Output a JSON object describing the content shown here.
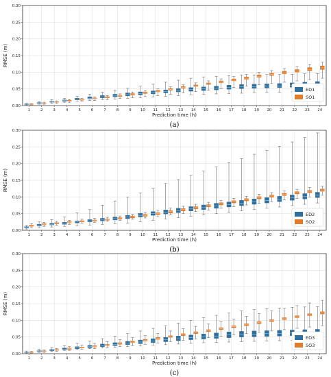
{
  "colors": {
    "series_a": "#2e6f9e",
    "series_b": "#e07b2a",
    "grid": "#d9d9d9",
    "whisker": "#555555"
  },
  "chart_data": [
    {
      "type": "box",
      "panel_label": "(a)",
      "xlabel": "Prediction time (h)",
      "ylabel": "RMSE (m)",
      "ylim": [
        0.0,
        0.3
      ],
      "yticks": [
        "0.00",
        "0.05",
        "0.10",
        "0.15",
        "0.20",
        "0.25",
        "0.30"
      ],
      "categories": [
        "1",
        "2",
        "3",
        "4",
        "5",
        "6",
        "7",
        "8",
        "9",
        "10",
        "11",
        "12",
        "13",
        "14",
        "15",
        "16",
        "17",
        "18",
        "19",
        "20",
        "21",
        "22",
        "23",
        "24"
      ],
      "grid": true,
      "legend_position": "bottom-right",
      "series": [
        {
          "name": "ED1",
          "color": "series_a",
          "whisker_low": [
            0.002,
            0.004,
            0.007,
            0.01,
            0.013,
            0.015,
            0.018,
            0.02,
            0.022,
            0.024,
            0.026,
            0.028,
            0.03,
            0.032,
            0.034,
            0.035,
            0.036,
            0.037,
            0.038,
            0.039,
            0.04,
            0.041,
            0.042,
            0.043
          ],
          "q1": [
            0.003,
            0.006,
            0.01,
            0.013,
            0.017,
            0.02,
            0.023,
            0.026,
            0.029,
            0.032,
            0.035,
            0.038,
            0.041,
            0.043,
            0.045,
            0.047,
            0.049,
            0.051,
            0.052,
            0.053,
            0.054,
            0.055,
            0.056,
            0.057
          ],
          "median": [
            0.004,
            0.007,
            0.011,
            0.015,
            0.019,
            0.022,
            0.026,
            0.029,
            0.033,
            0.036,
            0.039,
            0.042,
            0.045,
            0.048,
            0.05,
            0.052,
            0.054,
            0.056,
            0.057,
            0.058,
            0.059,
            0.06,
            0.061,
            0.063
          ],
          "q3": [
            0.005,
            0.009,
            0.013,
            0.017,
            0.022,
            0.026,
            0.03,
            0.034,
            0.038,
            0.041,
            0.044,
            0.047,
            0.051,
            0.054,
            0.056,
            0.058,
            0.061,
            0.063,
            0.064,
            0.065,
            0.066,
            0.068,
            0.07,
            0.072
          ],
          "whisker_high": [
            0.007,
            0.012,
            0.017,
            0.022,
            0.028,
            0.034,
            0.04,
            0.046,
            0.052,
            0.058,
            0.064,
            0.07,
            0.076,
            0.082,
            0.086,
            0.088,
            0.09,
            0.092,
            0.092,
            0.093,
            0.093,
            0.094,
            0.095,
            0.096
          ]
        },
        {
          "name": "SO1",
          "color": "series_b",
          "whisker_low": [
            0.002,
            0.004,
            0.007,
            0.01,
            0.013,
            0.015,
            0.018,
            0.021,
            0.024,
            0.027,
            0.03,
            0.034,
            0.038,
            0.042,
            0.046,
            0.05,
            0.054,
            0.058,
            0.062,
            0.066,
            0.07,
            0.074,
            0.078,
            0.082
          ],
          "q1": [
            0.003,
            0.006,
            0.01,
            0.013,
            0.016,
            0.02,
            0.023,
            0.027,
            0.031,
            0.036,
            0.041,
            0.046,
            0.052,
            0.057,
            0.063,
            0.068,
            0.074,
            0.079,
            0.085,
            0.09,
            0.095,
            0.1,
            0.104,
            0.108
          ],
          "median": [
            0.004,
            0.007,
            0.011,
            0.014,
            0.018,
            0.021,
            0.025,
            0.029,
            0.033,
            0.038,
            0.043,
            0.048,
            0.054,
            0.059,
            0.065,
            0.07,
            0.076,
            0.082,
            0.088,
            0.093,
            0.098,
            0.103,
            0.108,
            0.113
          ],
          "q3": [
            0.005,
            0.008,
            0.012,
            0.016,
            0.019,
            0.023,
            0.027,
            0.031,
            0.036,
            0.041,
            0.046,
            0.051,
            0.057,
            0.062,
            0.068,
            0.074,
            0.08,
            0.086,
            0.092,
            0.097,
            0.103,
            0.108,
            0.114,
            0.119
          ],
          "whisker_high": [
            0.006,
            0.01,
            0.014,
            0.018,
            0.022,
            0.026,
            0.03,
            0.035,
            0.04,
            0.045,
            0.05,
            0.056,
            0.062,
            0.068,
            0.074,
            0.08,
            0.087,
            0.093,
            0.099,
            0.105,
            0.111,
            0.117,
            0.123,
            0.13
          ]
        }
      ]
    },
    {
      "type": "box",
      "panel_label": "(b)",
      "xlabel": "Prediction time (h)",
      "ylabel": "RMSE (m)",
      "ylim": [
        0.0,
        0.3
      ],
      "yticks": [
        "0.00",
        "0.05",
        "0.10",
        "0.15",
        "0.20",
        "0.25",
        "0.30"
      ],
      "categories": [
        "1",
        "2",
        "3",
        "4",
        "5",
        "6",
        "7",
        "8",
        "9",
        "10",
        "11",
        "12",
        "13",
        "14",
        "15",
        "16",
        "17",
        "18",
        "19",
        "20",
        "21",
        "22",
        "23",
        "24"
      ],
      "grid": true,
      "legend_position": "bottom-right",
      "series": [
        {
          "name": "ED2",
          "color": "series_a",
          "whisker_low": [
            0.004,
            0.008,
            0.01,
            0.012,
            0.014,
            0.016,
            0.018,
            0.02,
            0.022,
            0.026,
            0.03,
            0.034,
            0.038,
            0.042,
            0.046,
            0.05,
            0.054,
            0.058,
            0.062,
            0.066,
            0.07,
            0.074,
            0.078,
            0.082
          ],
          "q1": [
            0.007,
            0.013,
            0.016,
            0.018,
            0.022,
            0.025,
            0.028,
            0.031,
            0.035,
            0.04,
            0.045,
            0.049,
            0.053,
            0.058,
            0.062,
            0.066,
            0.07,
            0.074,
            0.078,
            0.082,
            0.086,
            0.09,
            0.094,
            0.098
          ],
          "median": [
            0.009,
            0.015,
            0.018,
            0.021,
            0.025,
            0.028,
            0.031,
            0.035,
            0.04,
            0.045,
            0.05,
            0.054,
            0.059,
            0.064,
            0.068,
            0.073,
            0.077,
            0.081,
            0.085,
            0.089,
            0.093,
            0.097,
            0.101,
            0.105
          ],
          "q3": [
            0.011,
            0.018,
            0.021,
            0.024,
            0.028,
            0.032,
            0.036,
            0.04,
            0.045,
            0.051,
            0.056,
            0.061,
            0.066,
            0.071,
            0.076,
            0.081,
            0.085,
            0.09,
            0.094,
            0.098,
            0.102,
            0.106,
            0.11,
            0.114
          ],
          "whisker_high": [
            0.015,
            0.025,
            0.032,
            0.04,
            0.052,
            0.062,
            0.075,
            0.088,
            0.1,
            0.112,
            0.126,
            0.14,
            0.152,
            0.165,
            0.178,
            0.19,
            0.203,
            0.215,
            0.228,
            0.24,
            0.252,
            0.265,
            0.278,
            0.292
          ]
        },
        {
          "name": "SO2",
          "color": "series_b",
          "whisker_low": [
            0.008,
            0.012,
            0.015,
            0.018,
            0.021,
            0.024,
            0.027,
            0.03,
            0.033,
            0.037,
            0.041,
            0.046,
            0.051,
            0.056,
            0.061,
            0.066,
            0.071,
            0.076,
            0.081,
            0.086,
            0.091,
            0.096,
            0.1,
            0.105
          ],
          "q1": [
            0.012,
            0.016,
            0.019,
            0.022,
            0.025,
            0.027,
            0.03,
            0.033,
            0.037,
            0.042,
            0.047,
            0.052,
            0.058,
            0.064,
            0.07,
            0.076,
            0.082,
            0.088,
            0.094,
            0.099,
            0.104,
            0.109,
            0.113,
            0.117
          ],
          "median": [
            0.014,
            0.018,
            0.021,
            0.024,
            0.027,
            0.029,
            0.032,
            0.035,
            0.04,
            0.045,
            0.05,
            0.056,
            0.062,
            0.068,
            0.074,
            0.08,
            0.086,
            0.092,
            0.098,
            0.103,
            0.108,
            0.113,
            0.117,
            0.121
          ],
          "q3": [
            0.016,
            0.02,
            0.023,
            0.026,
            0.029,
            0.031,
            0.034,
            0.038,
            0.043,
            0.048,
            0.053,
            0.059,
            0.065,
            0.071,
            0.077,
            0.083,
            0.089,
            0.095,
            0.101,
            0.106,
            0.111,
            0.116,
            0.12,
            0.124
          ],
          "whisker_high": [
            0.02,
            0.024,
            0.027,
            0.03,
            0.033,
            0.036,
            0.039,
            0.043,
            0.048,
            0.054,
            0.06,
            0.066,
            0.072,
            0.078,
            0.084,
            0.09,
            0.096,
            0.102,
            0.108,
            0.113,
            0.118,
            0.123,
            0.128,
            0.132
          ]
        }
      ]
    },
    {
      "type": "box",
      "panel_label": "(c)",
      "xlabel": "Prediction time (h)",
      "ylabel": "RMSE (m)",
      "ylim": [
        0.0,
        0.3
      ],
      "yticks": [
        "0.00",
        "0.05",
        "0.10",
        "0.15",
        "0.20",
        "0.25",
        "0.30"
      ],
      "categories": [
        "1",
        "2",
        "3",
        "4",
        "5",
        "6",
        "7",
        "8",
        "9",
        "10",
        "11",
        "12",
        "13",
        "14",
        "15",
        "16",
        "17",
        "18",
        "19",
        "20",
        "21",
        "22",
        "23",
        "24"
      ],
      "grid": true,
      "legend_position": "bottom-right",
      "series": [
        {
          "name": "ED3",
          "color": "series_a",
          "whisker_low": [
            0.002,
            0.004,
            0.007,
            0.01,
            0.013,
            0.015,
            0.017,
            0.019,
            0.021,
            0.023,
            0.025,
            0.027,
            0.029,
            0.031,
            0.033,
            0.034,
            0.035,
            0.036,
            0.037,
            0.038,
            0.039,
            0.04,
            0.041,
            0.042
          ],
          "q1": [
            0.003,
            0.006,
            0.009,
            0.012,
            0.015,
            0.018,
            0.021,
            0.024,
            0.027,
            0.03,
            0.033,
            0.036,
            0.039,
            0.042,
            0.044,
            0.046,
            0.048,
            0.05,
            0.051,
            0.052,
            0.053,
            0.054,
            0.055,
            0.056
          ],
          "median": [
            0.004,
            0.007,
            0.011,
            0.014,
            0.018,
            0.021,
            0.025,
            0.028,
            0.032,
            0.035,
            0.038,
            0.042,
            0.045,
            0.048,
            0.051,
            0.053,
            0.056,
            0.058,
            0.059,
            0.06,
            0.061,
            0.062,
            0.063,
            0.064
          ],
          "q3": [
            0.005,
            0.009,
            0.013,
            0.017,
            0.021,
            0.025,
            0.029,
            0.033,
            0.037,
            0.041,
            0.045,
            0.049,
            0.053,
            0.056,
            0.059,
            0.062,
            0.065,
            0.067,
            0.068,
            0.069,
            0.07,
            0.071,
            0.072,
            0.073
          ],
          "whisker_high": [
            0.008,
            0.013,
            0.018,
            0.024,
            0.031,
            0.038,
            0.045,
            0.052,
            0.06,
            0.068,
            0.076,
            0.084,
            0.092,
            0.1,
            0.108,
            0.115,
            0.122,
            0.128,
            0.132,
            0.135,
            0.137,
            0.139,
            0.14,
            0.141
          ]
        },
        {
          "name": "SO3",
          "color": "series_b",
          "whisker_low": [
            0.002,
            0.004,
            0.007,
            0.01,
            0.013,
            0.015,
            0.018,
            0.021,
            0.024,
            0.028,
            0.032,
            0.036,
            0.04,
            0.044,
            0.048,
            0.052,
            0.056,
            0.06,
            0.064,
            0.068,
            0.072,
            0.076,
            0.08,
            0.084
          ],
          "q1": [
            0.003,
            0.006,
            0.01,
            0.013,
            0.017,
            0.02,
            0.024,
            0.028,
            0.033,
            0.038,
            0.043,
            0.049,
            0.054,
            0.06,
            0.066,
            0.072,
            0.078,
            0.084,
            0.09,
            0.096,
            0.102,
            0.108,
            0.114,
            0.119
          ],
          "median": [
            0.004,
            0.007,
            0.011,
            0.015,
            0.018,
            0.022,
            0.026,
            0.03,
            0.035,
            0.04,
            0.046,
            0.051,
            0.057,
            0.063,
            0.069,
            0.075,
            0.081,
            0.087,
            0.093,
            0.099,
            0.105,
            0.111,
            0.117,
            0.123
          ],
          "q3": [
            0.005,
            0.009,
            0.013,
            0.017,
            0.02,
            0.024,
            0.028,
            0.033,
            0.038,
            0.043,
            0.049,
            0.054,
            0.06,
            0.066,
            0.072,
            0.078,
            0.084,
            0.09,
            0.096,
            0.102,
            0.108,
            0.114,
            0.12,
            0.126
          ],
          "whisker_high": [
            0.007,
            0.011,
            0.016,
            0.021,
            0.026,
            0.031,
            0.036,
            0.042,
            0.048,
            0.054,
            0.061,
            0.068,
            0.075,
            0.082,
            0.089,
            0.096,
            0.104,
            0.112,
            0.12,
            0.128,
            0.136,
            0.144,
            0.152,
            0.16
          ]
        }
      ]
    }
  ]
}
